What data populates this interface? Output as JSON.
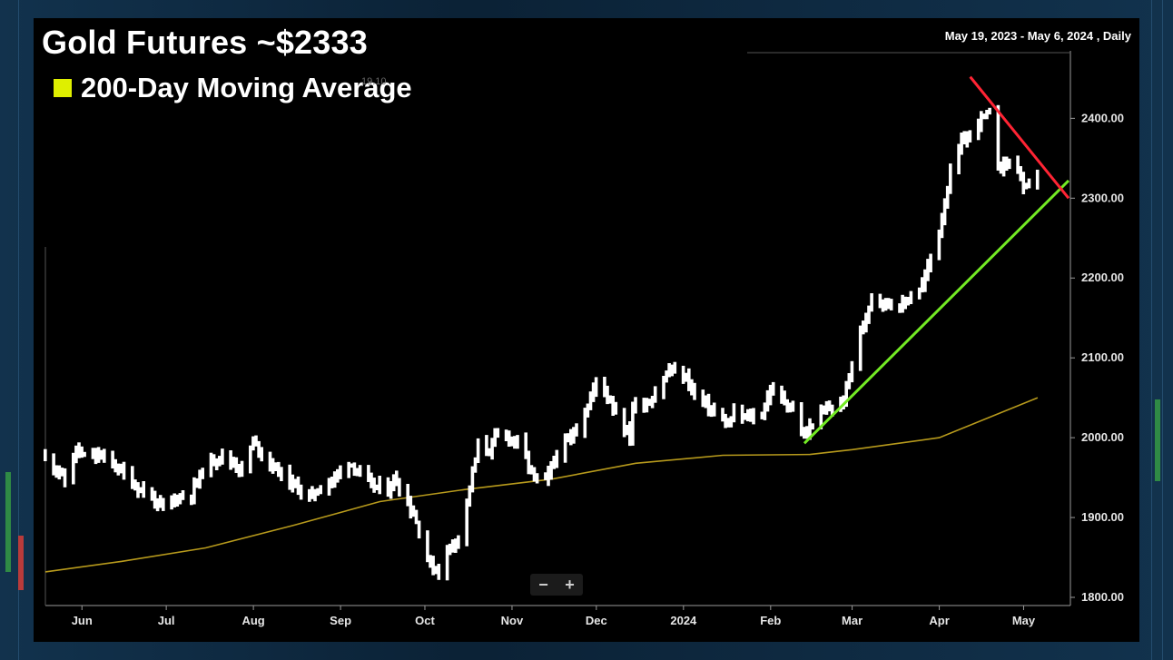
{
  "header": {
    "title": "Gold Futures ~$2333",
    "legend_label": "200-Day Moving Average",
    "legend_color": "#dfef00",
    "range": "May 19, 2023 - May 6, 2024 , Daily",
    "ghost_label": "19.10"
  },
  "zoom": {
    "minus": "−",
    "plus": "+"
  },
  "chart_data": {
    "type": "ohlc",
    "ylim": [
      1800,
      2480
    ],
    "y_ticks": [
      "1800.00",
      "1900.00",
      "2000.00",
      "2100.00",
      "2200.00",
      "2300.00",
      "2400.00"
    ],
    "x_ticks": [
      "Jun",
      "Jul",
      "Aug",
      "Sep",
      "Oct",
      "Nov",
      "Dec",
      "2024",
      "Feb",
      "Mar",
      "Apr",
      "May"
    ],
    "x_tick_dates": [
      "2023-06-01",
      "2023-07-01",
      "2023-08-01",
      "2023-09-01",
      "2023-10-01",
      "2023-11-01",
      "2023-12-01",
      "2024-01-01",
      "2024-02-01",
      "2024-03-01",
      "2024-04-01",
      "2024-05-01"
    ],
    "x_range": [
      "2023-05-19",
      "2024-05-17"
    ],
    "price_anchors": [
      [
        "2023-05-19",
        1975
      ],
      [
        "2023-05-24",
        1958
      ],
      [
        "2023-05-26",
        1945
      ],
      [
        "2023-05-30",
        1985
      ],
      [
        "2023-06-02",
        1975
      ],
      [
        "2023-06-07",
        1978
      ],
      [
        "2023-06-12",
        1968
      ],
      [
        "2023-06-16",
        1955
      ],
      [
        "2023-06-20",
        1940
      ],
      [
        "2023-06-26",
        1925
      ],
      [
        "2023-06-29",
        1912
      ],
      [
        "2023-07-05",
        1925
      ],
      [
        "2023-07-10",
        1930
      ],
      [
        "2023-07-14",
        1960
      ],
      [
        "2023-07-20",
        1978
      ],
      [
        "2023-07-25",
        1968
      ],
      [
        "2023-07-28",
        1960
      ],
      [
        "2023-08-01",
        1995
      ],
      [
        "2023-08-07",
        1968
      ],
      [
        "2023-08-14",
        1945
      ],
      [
        "2023-08-21",
        1925
      ],
      [
        "2023-08-24",
        1935
      ],
      [
        "2023-08-30",
        1950
      ],
      [
        "2023-09-04",
        1970
      ],
      [
        "2023-09-12",
        1940
      ],
      [
        "2023-09-18",
        1935
      ],
      [
        "2023-09-20",
        1948
      ],
      [
        "2023-09-22",
        1940
      ],
      [
        "2023-09-27",
        1905
      ],
      [
        "2023-10-03",
        1840
      ],
      [
        "2023-10-06",
        1832
      ],
      [
        "2023-10-09",
        1860
      ],
      [
        "2023-10-13",
        1875
      ],
      [
        "2023-10-16",
        1920
      ],
      [
        "2023-10-20",
        1990
      ],
      [
        "2023-10-24",
        1985
      ],
      [
        "2023-10-27",
        2005
      ],
      [
        "2023-10-31",
        2000
      ],
      [
        "2023-11-03",
        1995
      ],
      [
        "2023-11-09",
        1950
      ],
      [
        "2023-11-13",
        1945
      ],
      [
        "2023-11-17",
        1980
      ],
      [
        "2023-11-22",
        2000
      ],
      [
        "2023-11-28",
        2040
      ],
      [
        "2023-12-01",
        2070
      ],
      [
        "2023-12-04",
        2060
      ],
      [
        "2023-12-07",
        2040
      ],
      [
        "2023-12-13",
        2000
      ],
      [
        "2023-12-14",
        2040
      ],
      [
        "2023-12-20",
        2045
      ],
      [
        "2023-12-27",
        2085
      ],
      [
        "2024-01-02",
        2075
      ],
      [
        "2024-01-05",
        2055
      ],
      [
        "2024-01-11",
        2035
      ],
      [
        "2024-01-17",
        2015
      ],
      [
        "2024-01-19",
        2030
      ],
      [
        "2024-01-24",
        2025
      ],
      [
        "2024-01-29",
        2030
      ],
      [
        "2024-02-01",
        2060
      ],
      [
        "2024-02-05",
        2050
      ],
      [
        "2024-02-09",
        2035
      ],
      [
        "2024-02-13",
        2000
      ],
      [
        "2024-02-16",
        2020
      ],
      [
        "2024-02-21",
        2035
      ],
      [
        "2024-02-27",
        2045
      ],
      [
        "2024-03-01",
        2095
      ],
      [
        "2024-03-05",
        2140
      ],
      [
        "2024-03-08",
        2180
      ],
      [
        "2024-03-12",
        2170
      ],
      [
        "2024-03-19",
        2165
      ],
      [
        "2024-03-21",
        2175
      ],
      [
        "2024-03-26",
        2190
      ],
      [
        "2024-04-01",
        2260
      ],
      [
        "2024-04-05",
        2330
      ],
      [
        "2024-04-09",
        2370
      ],
      [
        "2024-04-12",
        2380
      ],
      [
        "2024-04-16",
        2400
      ],
      [
        "2024-04-19",
        2405
      ],
      [
        "2024-04-22",
        2340
      ],
      [
        "2024-04-25",
        2345
      ],
      [
        "2024-04-29",
        2340
      ],
      [
        "2024-05-01",
        2310
      ],
      [
        "2024-05-03",
        2315
      ],
      [
        "2024-05-06",
        2333
      ]
    ],
    "moving_average_200d": [
      [
        "2023-05-19",
        1832
      ],
      [
        "2023-06-15",
        1845
      ],
      [
        "2023-07-15",
        1862
      ],
      [
        "2023-08-15",
        1890
      ],
      [
        "2023-09-15",
        1920
      ],
      [
        "2023-10-15",
        1935
      ],
      [
        "2023-11-15",
        1948
      ],
      [
        "2023-12-15",
        1968
      ],
      [
        "2024-01-15",
        1978
      ],
      [
        "2024-02-15",
        1979
      ],
      [
        "2024-03-01",
        1985
      ],
      [
        "2024-04-01",
        2000
      ],
      [
        "2024-05-06",
        2050
      ]
    ],
    "support_line": [
      [
        "2024-02-13",
        1993
      ],
      [
        "2024-05-17",
        2322
      ]
    ],
    "resistance_line": [
      [
        "2024-04-12",
        2452
      ],
      [
        "2024-05-17",
        2300
      ]
    ],
    "colors": {
      "bars": "#ffffff",
      "moving_average": "#b79a1c",
      "support": "#73ea24",
      "resistance": "#ff2434"
    }
  }
}
